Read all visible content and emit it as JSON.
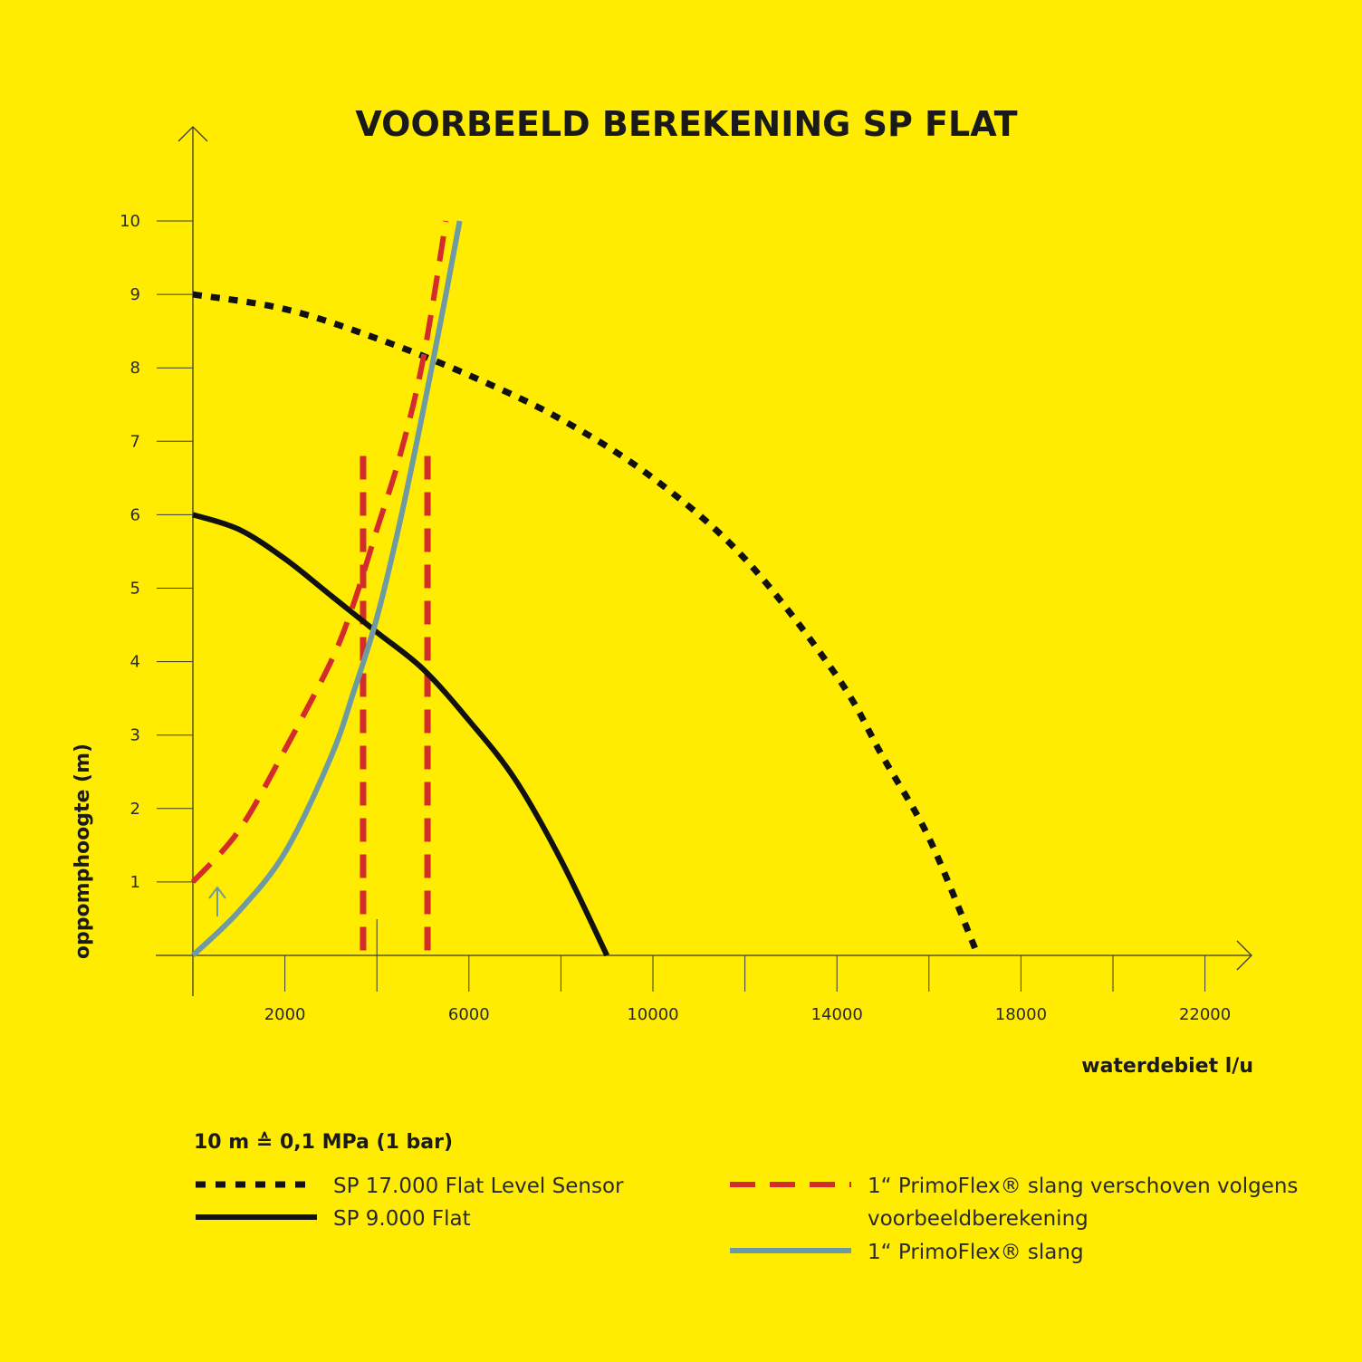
{
  "colors": {
    "background": "#FFEC00",
    "black": "#111111",
    "red": "#D42B2B",
    "blue": "#6E9AA3",
    "axis": "#3a3a3a"
  },
  "chart_data": {
    "type": "line",
    "title": "VOORBEELD BEREKENING SP FLAT",
    "xlabel": "waterdebiet l/u",
    "ylabel": "oppomphoogte (m)",
    "xlim": [
      0,
      23000
    ],
    "ylim": [
      0,
      10
    ],
    "x_ticks": [
      2000,
      6000,
      10000,
      14000,
      18000,
      22000
    ],
    "y_ticks": [
      1,
      2,
      3,
      4,
      5,
      6,
      7,
      8,
      9,
      10
    ],
    "note": "10 m ≙ 0,1 MPa (1 bar)",
    "series": [
      {
        "name": "SP 17.000 Flat Level Sensor",
        "style": "dotted",
        "color": "#111111",
        "x": [
          0,
          2000,
          4000,
          6000,
          8000,
          10000,
          12000,
          14000,
          15000,
          16000,
          17000
        ],
        "y": [
          9.0,
          8.8,
          8.4,
          7.9,
          7.3,
          6.5,
          5.4,
          3.8,
          2.7,
          1.6,
          0.1
        ]
      },
      {
        "name": "SP 9.000 Flat",
        "style": "solid",
        "color": "#111111",
        "x": [
          0,
          1000,
          2000,
          3000,
          4000,
          5000,
          6000,
          7000,
          8000,
          9000
        ],
        "y": [
          6.0,
          5.8,
          5.4,
          4.9,
          4.4,
          3.9,
          3.2,
          2.4,
          1.3,
          0.0
        ]
      },
      {
        "name": "1“ PrimoFlex® slang verschoven volgens voorbeeldberekening",
        "style": "dashed",
        "color": "#D42B2B",
        "x": [
          0,
          1000,
          2000,
          3000,
          3500,
          4000,
          4500,
          5000,
          5500
        ],
        "y": [
          1.0,
          1.7,
          2.8,
          4.0,
          4.8,
          5.8,
          6.8,
          8.1,
          10.0
        ]
      },
      {
        "name": "1“ PrimoFlex® slang",
        "style": "solid",
        "color": "#6E9AA3",
        "x": [
          0,
          1000,
          2000,
          3000,
          3500,
          4000,
          4500,
          5000,
          5500,
          5800
        ],
        "y": [
          0.0,
          0.6,
          1.4,
          2.7,
          3.6,
          4.6,
          5.9,
          7.4,
          9.0,
          10.0
        ]
      }
    ],
    "reference_lines": [
      {
        "x": 3700,
        "style": "dashed",
        "color": "#D42B2B"
      },
      {
        "x": 5100,
        "style": "dashed",
        "color": "#D42B2B"
      }
    ],
    "legend_placement": "bottom"
  }
}
